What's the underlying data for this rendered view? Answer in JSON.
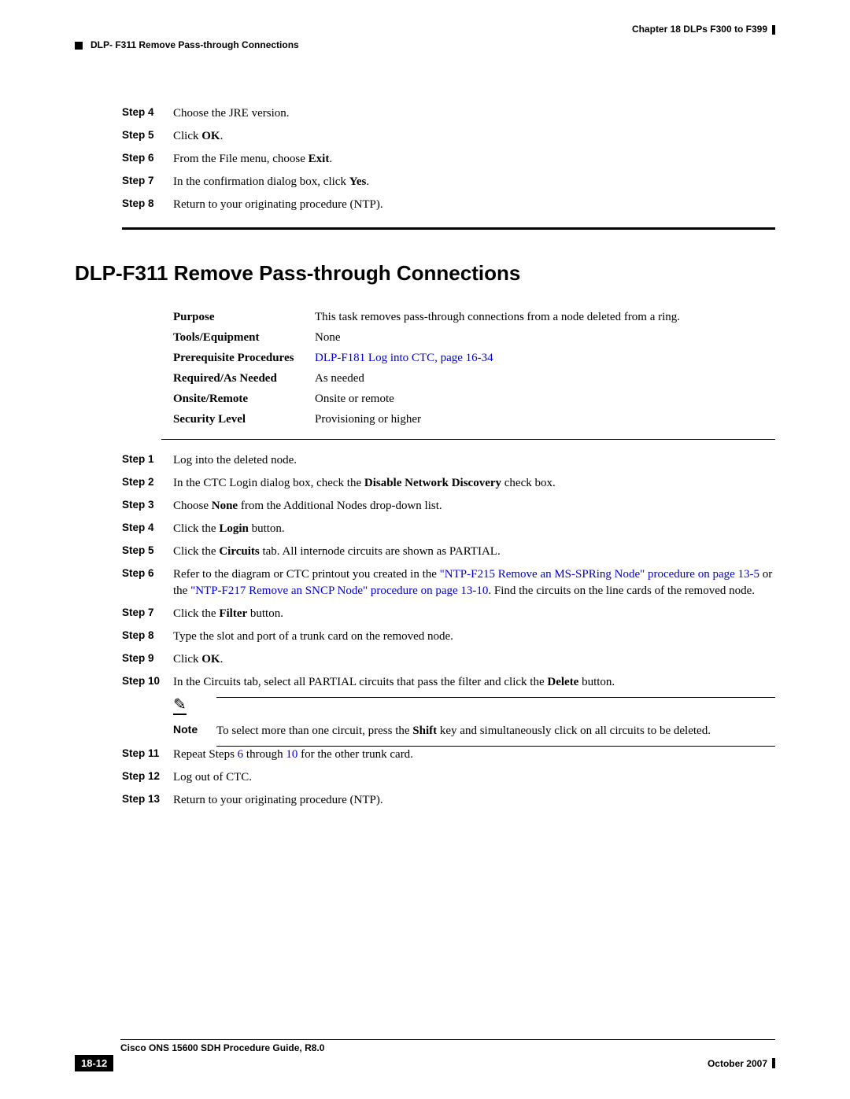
{
  "header": {
    "chapter": "Chapter 18  DLPs F300 to F399",
    "section_ref": "DLP- F311 Remove Pass-through Connections"
  },
  "top_steps": [
    {
      "n": "Step 4",
      "parts": [
        {
          "t": "Choose the JRE version."
        }
      ]
    },
    {
      "n": "Step 5",
      "parts": [
        {
          "t": "Click "
        },
        {
          "t": "OK",
          "b": true
        },
        {
          "t": "."
        }
      ]
    },
    {
      "n": "Step 6",
      "parts": [
        {
          "t": "From the File menu, choose "
        },
        {
          "t": "Exit",
          "b": true
        },
        {
          "t": "."
        }
      ]
    },
    {
      "n": "Step 7",
      "parts": [
        {
          "t": "In the confirmation dialog box, click "
        },
        {
          "t": "Yes",
          "b": true
        },
        {
          "t": "."
        }
      ]
    },
    {
      "n": "Step 8",
      "parts": [
        {
          "t": "Return to your originating procedure (NTP)."
        }
      ]
    }
  ],
  "title": "DLP-F311 Remove Pass-through Connections",
  "info": [
    {
      "label": "Purpose",
      "parts": [
        {
          "t": "This task removes pass-through connections from a node deleted from a ring."
        }
      ]
    },
    {
      "label": "Tools/Equipment",
      "parts": [
        {
          "t": "None"
        }
      ]
    },
    {
      "label": "Prerequisite Procedures",
      "parts": [
        {
          "t": "DLP-F181 Log into CTC, page 16-34",
          "link": true
        }
      ]
    },
    {
      "label": "Required/As Needed",
      "parts": [
        {
          "t": "As needed"
        }
      ]
    },
    {
      "label": "Onsite/Remote",
      "parts": [
        {
          "t": "Onsite or remote"
        }
      ]
    },
    {
      "label": "Security Level",
      "parts": [
        {
          "t": "Provisioning or higher"
        }
      ]
    }
  ],
  "main_steps": [
    {
      "n": "Step 1",
      "parts": [
        {
          "t": "Log into the deleted node."
        }
      ]
    },
    {
      "n": "Step 2",
      "parts": [
        {
          "t": "In the CTC Login dialog box, check the "
        },
        {
          "t": "Disable Network Discovery",
          "b": true
        },
        {
          "t": " check box."
        }
      ]
    },
    {
      "n": "Step 3",
      "parts": [
        {
          "t": "Choose "
        },
        {
          "t": "None",
          "b": true
        },
        {
          "t": " from the Additional Nodes drop-down list."
        }
      ]
    },
    {
      "n": "Step 4",
      "parts": [
        {
          "t": "Click the "
        },
        {
          "t": "Login",
          "b": true
        },
        {
          "t": " button."
        }
      ]
    },
    {
      "n": "Step 5",
      "parts": [
        {
          "t": "Click the "
        },
        {
          "t": "Circuits",
          "b": true
        },
        {
          "t": " tab. All internode circuits are shown as PARTIAL."
        }
      ]
    },
    {
      "n": "Step 6",
      "parts": [
        {
          "t": "Refer to the diagram or CTC printout you created in the "
        },
        {
          "t": "\"NTP-F215 Remove an MS-SPRing Node\" procedure on page 13-5",
          "link": true
        },
        {
          "t": " or the "
        },
        {
          "t": "\"NTP-F217 Remove an SNCP Node\" procedure on page 13-10",
          "link": true
        },
        {
          "t": ". Find the circuits on the line cards of the removed node."
        }
      ]
    },
    {
      "n": "Step 7",
      "parts": [
        {
          "t": "Click the "
        },
        {
          "t": "Filter",
          "b": true
        },
        {
          "t": " button."
        }
      ]
    },
    {
      "n": "Step 8",
      "parts": [
        {
          "t": "Type the slot and port of a trunk card on the removed node."
        }
      ]
    },
    {
      "n": "Step 9",
      "parts": [
        {
          "t": "Click "
        },
        {
          "t": "OK",
          "b": true
        },
        {
          "t": "."
        }
      ]
    },
    {
      "n": "Step 10",
      "parts": [
        {
          "t": "In the Circuits tab, select all PARTIAL circuits that pass the filter and click the "
        },
        {
          "t": "Delete",
          "b": true
        },
        {
          "t": " button."
        }
      ],
      "note": {
        "label": "Note",
        "parts": [
          {
            "t": "To select more than one circuit, press the "
          },
          {
            "t": "Shift",
            "b": true
          },
          {
            "t": " key and simultaneously click on all circuits to be deleted."
          }
        ]
      }
    },
    {
      "n": "Step 11",
      "parts": [
        {
          "t": "Repeat Steps "
        },
        {
          "t": "6",
          "link": true
        },
        {
          "t": " through "
        },
        {
          "t": "10",
          "link": true
        },
        {
          "t": " for the other trunk card."
        }
      ]
    },
    {
      "n": "Step 12",
      "parts": [
        {
          "t": "Log out of CTC."
        }
      ]
    },
    {
      "n": "Step 13",
      "parts": [
        {
          "t": "Return to your originating procedure (NTP)."
        }
      ]
    }
  ],
  "footer": {
    "guide": "Cisco ONS 15600 SDH Procedure Guide, R8.0",
    "page": "18-12",
    "date": "October 2007"
  }
}
